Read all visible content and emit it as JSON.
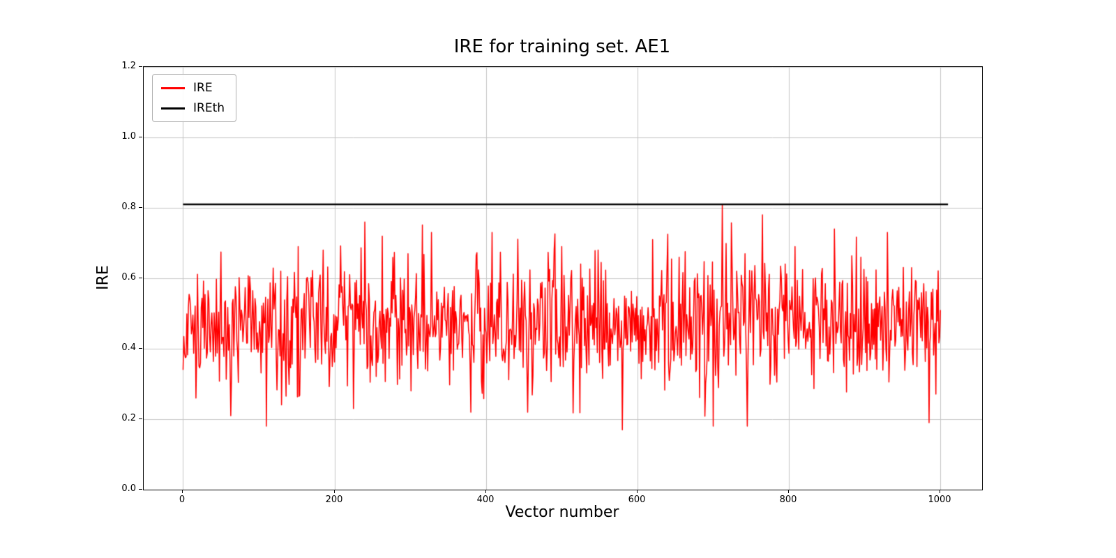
{
  "chart_data": {
    "type": "line",
    "title": "IRE for training set. AE1",
    "xlabel": "Vector number",
    "ylabel": "IRE",
    "xlim": [
      -52,
      1055
    ],
    "ylim": [
      0.0,
      1.2
    ],
    "xticks": [
      0,
      200,
      400,
      600,
      800,
      1000
    ],
    "yticks": [
      0.0,
      0.2,
      0.4,
      0.6,
      0.8,
      1.0,
      1.2
    ],
    "grid": true,
    "grid_color": "#c6c6c6",
    "background": "#ffffff",
    "legend": {
      "position": "upper-left",
      "entries": [
        "IRE",
        "IREth"
      ]
    },
    "series": [
      {
        "name": "IRE",
        "color": "#ff0000",
        "style": "noisy-line",
        "n_points": 1001,
        "x_start": 0,
        "x_end": 1000,
        "mean": 0.47,
        "std": 0.088,
        "min": 0.17,
        "max": 0.81,
        "clip": [
          0.18,
          0.76
        ],
        "seed": 1337,
        "notable_extremes": [
          [
            0,
            0.34
          ],
          [
            63,
            0.21
          ],
          [
            110,
            0.18
          ],
          [
            152,
            0.69
          ],
          [
            185,
            0.68
          ],
          [
            225,
            0.23
          ],
          [
            240,
            0.76
          ],
          [
            263,
            0.72
          ],
          [
            297,
            0.67
          ],
          [
            328,
            0.73
          ],
          [
            380,
            0.22
          ],
          [
            408,
            0.73
          ],
          [
            455,
            0.22
          ],
          [
            500,
            0.69
          ],
          [
            548,
            0.68
          ],
          [
            580,
            0.17
          ],
          [
            620,
            0.71
          ],
          [
            655,
            0.66
          ],
          [
            700,
            0.18
          ],
          [
            712,
            0.81
          ],
          [
            742,
            0.67
          ],
          [
            765,
            0.78
          ],
          [
            808,
            0.69
          ],
          [
            860,
            0.74
          ],
          [
            895,
            0.66
          ],
          [
            930,
            0.73
          ],
          [
            962,
            0.63
          ],
          [
            985,
            0.19
          ],
          [
            1000,
            0.51
          ]
        ]
      },
      {
        "name": "IREth",
        "color": "#000000",
        "style": "hline",
        "value": 0.81,
        "x_start": 0,
        "x_end": 1010
      }
    ]
  }
}
